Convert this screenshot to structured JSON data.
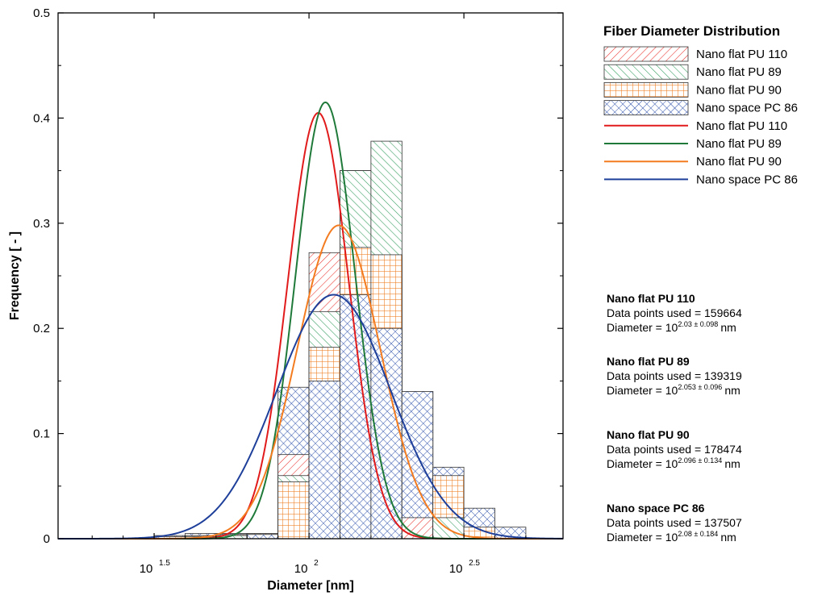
{
  "chart_data": {
    "type": "bar",
    "title": "",
    "xlabel": "Diameter [nm]",
    "ylabel": "Frequency [ - ]",
    "x_scale": "log10",
    "xlim": [
      1.19,
      2.82
    ],
    "ylim": [
      0,
      0.5
    ],
    "bin_edges": [
      1.3,
      1.4,
      1.5,
      1.6,
      1.7,
      1.8,
      1.9,
      2.0,
      2.1,
      2.2,
      2.3,
      2.4,
      2.5,
      2.6,
      2.7
    ],
    "x_ticks": [
      {
        "base": "10",
        "exp": "1.5",
        "value": 1.5
      },
      {
        "base": "10",
        "exp": "2",
        "value": 2.0
      },
      {
        "base": "10",
        "exp": "2.5",
        "value": 2.5
      }
    ],
    "y_ticks": [
      "0",
      "0.1",
      "0.2",
      "0.3",
      "0.4",
      "0.5"
    ],
    "y_tick_values": [
      0,
      0.1,
      0.2,
      0.3,
      0.4,
      0.5
    ],
    "grid": false,
    "legend_title": "Fiber Diameter Distribution",
    "legend_position": "right",
    "series": [
      {
        "name": "Nano flat PU 110",
        "kind": "histogram",
        "color": "#e8302a",
        "pattern": "diagonal-right",
        "values": [
          0,
          0,
          0,
          0.003,
          0.004,
          0.005,
          0.08,
          0.272,
          0.35,
          0.27,
          0.02,
          0,
          0,
          0
        ]
      },
      {
        "name": "Nano flat PU 89",
        "kind": "histogram",
        "color": "#2e9a5a",
        "pattern": "diagonal-left",
        "values": [
          0,
          0,
          0,
          0.002,
          0.003,
          0.004,
          0.06,
          0.216,
          0.35,
          0.378,
          0.14,
          0.02,
          0,
          0
        ]
      },
      {
        "name": "Nano flat PU 90",
        "kind": "histogram",
        "color": "#f07a1a",
        "pattern": "grid",
        "values": [
          0,
          0,
          0.002,
          0.003,
          0.004,
          0.005,
          0.054,
          0.182,
          0.277,
          0.27,
          0.14,
          0.06,
          0.011,
          0
        ]
      },
      {
        "name": "Nano space PC 86",
        "kind": "histogram",
        "color": "#2a4eaa",
        "pattern": "crosshatch",
        "values": [
          0,
          0,
          0.003,
          0.005,
          0.005,
          0.004,
          0.144,
          0.15,
          0.232,
          0.2,
          0.14,
          0.068,
          0.029,
          0.011
        ]
      },
      {
        "name": "Nano flat PU 110",
        "kind": "fit",
        "color": "#e11b1b",
        "mu": 2.03,
        "sigma": 0.098,
        "peak": 0.405
      },
      {
        "name": "Nano flat PU 89",
        "kind": "fit",
        "color": "#1f7a3a",
        "mu": 2.053,
        "sigma": 0.096,
        "peak": 0.415
      },
      {
        "name": "Nano flat PU 90",
        "kind": "fit",
        "color": "#f47c20",
        "mu": 2.096,
        "sigma": 0.134,
        "peak": 0.298
      },
      {
        "name": "Nano space PC 86",
        "kind": "fit",
        "color": "#1e3f9a",
        "mu": 2.08,
        "sigma": 0.184,
        "peak": 0.232
      }
    ],
    "annotations": [
      {
        "title": "Nano flat PU 110",
        "line1": "Data points used = 159664",
        "prefix": "Diameter = 10",
        "exp": "2.03 ±  0.098",
        "unit": "nm"
      },
      {
        "title": "Nano flat PU 89",
        "line1": "Data points used = 139319",
        "prefix": "Diameter = 10",
        "exp": "2.053 ±  0.096",
        "unit": "nm"
      },
      {
        "title": "Nano flat PU 90",
        "line1": "Data points used = 178474",
        "prefix": "Diameter = 10",
        "exp": "2.096 ±  0.134",
        "unit": "nm"
      },
      {
        "title": "Nano space PC 86",
        "line1": "Data points used = 137507",
        "prefix": "Diameter = 10",
        "exp": "2.08 ±  0.184",
        "unit": "nm"
      }
    ]
  }
}
